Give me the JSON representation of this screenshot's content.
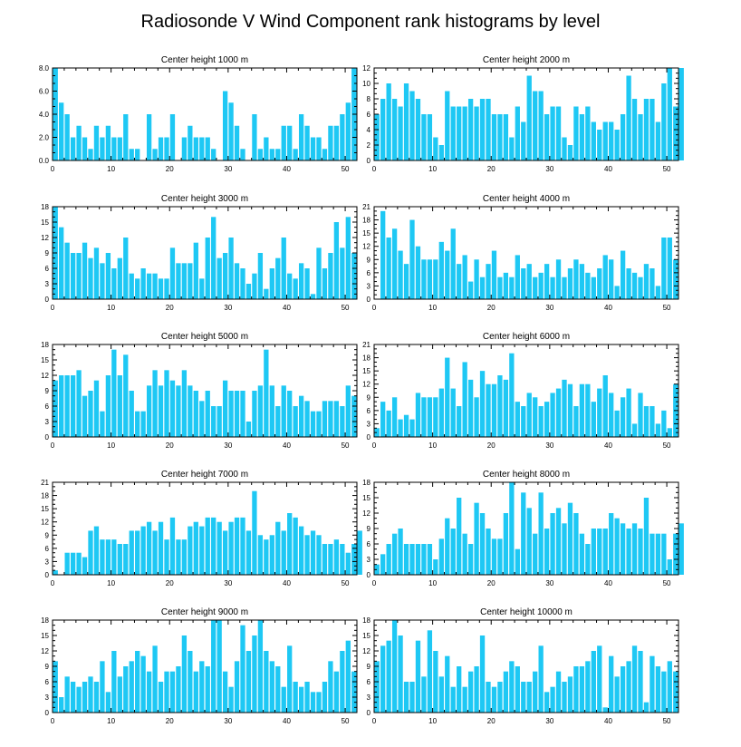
{
  "figure": {
    "title": "Radiosonde V Wind Component rank histograms by level",
    "bar_color": "#1ec8f4",
    "axis_color": "#000000"
  },
  "chart_data": [
    {
      "type": "bar",
      "title": "Center height 1000 m",
      "ylim": [
        0,
        8
      ],
      "yticks": [
        0,
        2,
        4,
        6,
        8
      ],
      "ytick_labels": [
        "0.0",
        "2.0",
        "4.0",
        "6.0",
        "8.0"
      ],
      "xlim": [
        0,
        52
      ],
      "xticks": [
        0,
        10,
        20,
        30,
        40,
        50
      ],
      "xlabel": "",
      "ylabel": "",
      "values": [
        8,
        5,
        4,
        2,
        3,
        2,
        1,
        3,
        2,
        3,
        2,
        2,
        4,
        1,
        1,
        0,
        4,
        1,
        2,
        2,
        4,
        0,
        2,
        3,
        2,
        2,
        2,
        1,
        0,
        6,
        5,
        3,
        1,
        0,
        4,
        1,
        2,
        1,
        1,
        3,
        3,
        1,
        4,
        3,
        2,
        2,
        1,
        3,
        3,
        4,
        5,
        8
      ]
    },
    {
      "type": "bar",
      "title": "Center height 2000 m",
      "ylim": [
        0,
        12
      ],
      "yticks": [
        0,
        2,
        4,
        6,
        8,
        10,
        12
      ],
      "ytick_labels": [
        "0",
        "2",
        "4",
        "6",
        "8",
        "10",
        "12"
      ],
      "xlim": [
        0,
        52
      ],
      "xticks": [
        0,
        10,
        20,
        30,
        40,
        50
      ],
      "xlabel": "",
      "ylabel": "",
      "values": [
        6,
        8,
        10,
        8,
        7,
        10,
        9,
        8,
        6,
        6,
        3,
        2,
        9,
        7,
        7,
        7,
        8,
        7,
        8,
        8,
        6,
        6,
        6,
        3,
        7,
        5,
        11,
        9,
        9,
        6,
        7,
        7,
        3,
        2,
        7,
        6,
        7,
        5,
        4,
        5,
        5,
        4,
        6,
        11,
        8,
        6,
        8,
        8,
        5,
        10,
        12,
        7,
        12
      ]
    },
    {
      "type": "bar",
      "title": "Center height 3000 m",
      "ylim": [
        0,
        18
      ],
      "yticks": [
        0,
        3,
        6,
        9,
        12,
        15,
        18
      ],
      "ytick_labels": [
        "0",
        "3",
        "6",
        "9",
        "12",
        "15",
        "18"
      ],
      "xlim": [
        0,
        52
      ],
      "xticks": [
        0,
        10,
        20,
        30,
        40,
        50
      ],
      "xlabel": "",
      "ylabel": "",
      "values": [
        18,
        14,
        11,
        9,
        9,
        11,
        8,
        10,
        7,
        9,
        6,
        8,
        12,
        5,
        4,
        6,
        5,
        5,
        4,
        4,
        10,
        7,
        7,
        7,
        11,
        4,
        12,
        16,
        8,
        9,
        12,
        7,
        6,
        3,
        5,
        9,
        2,
        6,
        8,
        12,
        5,
        4,
        7,
        6,
        1,
        10,
        6,
        9,
        15,
        10,
        16,
        9
      ]
    },
    {
      "type": "bar",
      "title": "Center height 4000 m",
      "ylim": [
        0,
        21
      ],
      "yticks": [
        0,
        3,
        6,
        9,
        12,
        15,
        18,
        21
      ],
      "ytick_labels": [
        "0",
        "3",
        "6",
        "9",
        "12",
        "15",
        "18",
        "21"
      ],
      "xlim": [
        0,
        52
      ],
      "xticks": [
        0,
        10,
        20,
        30,
        40,
        50
      ],
      "xlabel": "",
      "ylabel": "",
      "values": [
        0,
        20,
        14,
        16,
        11,
        8,
        18,
        12,
        9,
        9,
        9,
        13,
        11,
        16,
        8,
        10,
        4,
        9,
        5,
        8,
        11,
        5,
        6,
        5,
        10,
        7,
        8,
        5,
        6,
        8,
        5,
        9,
        5,
        7,
        9,
        8,
        6,
        5,
        7,
        10,
        9,
        3,
        11,
        7,
        6,
        5,
        8,
        7,
        3,
        14,
        14,
        9
      ]
    },
    {
      "type": "bar",
      "title": "Center height 5000 m",
      "ylim": [
        0,
        18
      ],
      "yticks": [
        0,
        3,
        6,
        9,
        12,
        15,
        18
      ],
      "ytick_labels": [
        "0",
        "3",
        "6",
        "9",
        "12",
        "15",
        "18"
      ],
      "xlim": [
        0,
        52
      ],
      "xticks": [
        0,
        10,
        20,
        30,
        40,
        50
      ],
      "xlabel": "",
      "ylabel": "",
      "values": [
        11,
        12,
        12,
        12,
        13,
        8,
        9,
        11,
        5,
        12,
        17,
        12,
        16,
        9,
        5,
        5,
        10,
        13,
        10,
        13,
        11,
        10,
        13,
        10,
        9,
        7,
        9,
        6,
        6,
        11,
        9,
        9,
        9,
        3,
        9,
        10,
        17,
        10,
        6,
        10,
        9,
        6,
        8,
        7,
        5,
        5,
        7,
        7,
        7,
        6,
        10,
        8
      ]
    },
    {
      "type": "bar",
      "title": "Center height 6000 m",
      "ylim": [
        0,
        21
      ],
      "yticks": [
        0,
        3,
        6,
        9,
        12,
        15,
        18,
        21
      ],
      "ytick_labels": [
        "0",
        "3",
        "6",
        "9",
        "12",
        "15",
        "18",
        "21"
      ],
      "xlim": [
        0,
        52
      ],
      "xticks": [
        0,
        10,
        20,
        30,
        40,
        50
      ],
      "xlabel": "",
      "ylabel": "",
      "values": [
        2,
        8,
        6,
        9,
        4,
        5,
        4,
        10,
        9,
        9,
        9,
        11,
        18,
        11,
        7,
        17,
        13,
        9,
        15,
        12,
        12,
        14,
        13,
        19,
        8,
        7,
        10,
        9,
        7,
        8,
        10,
        11,
        13,
        12,
        7,
        12,
        12,
        8,
        11,
        14,
        10,
        6,
        9,
        11,
        3,
        10,
        7,
        7,
        3,
        6,
        2,
        12
      ]
    },
    {
      "type": "bar",
      "title": "Center height 7000 m",
      "ylim": [
        0,
        21
      ],
      "yticks": [
        0,
        3,
        6,
        9,
        12,
        15,
        18,
        21
      ],
      "ytick_labels": [
        "0",
        "3",
        "6",
        "9",
        "12",
        "15",
        "18",
        "21"
      ],
      "xlim": [
        0,
        52
      ],
      "xticks": [
        0,
        10,
        20,
        30,
        40,
        50
      ],
      "xlabel": "",
      "ylabel": "",
      "values": [
        1,
        0,
        5,
        5,
        5,
        4,
        10,
        11,
        8,
        8,
        8,
        7,
        7,
        10,
        10,
        11,
        12,
        10,
        12,
        8,
        13,
        8,
        8,
        11,
        12,
        11,
        13,
        13,
        12,
        10,
        12,
        13,
        13,
        10,
        19,
        9,
        8,
        9,
        12,
        10,
        14,
        13,
        11,
        9,
        10,
        9,
        7,
        7,
        8,
        7,
        5,
        7,
        10
      ]
    },
    {
      "type": "bar",
      "title": "Center height 8000 m",
      "ylim": [
        0,
        18
      ],
      "yticks": [
        0,
        3,
        6,
        9,
        12,
        15,
        18
      ],
      "ytick_labels": [
        "0",
        "3",
        "6",
        "9",
        "12",
        "15",
        "18"
      ],
      "xlim": [
        0,
        52
      ],
      "xticks": [
        0,
        10,
        20,
        30,
        40,
        50
      ],
      "xlabel": "",
      "ylabel": "",
      "values": [
        2,
        4,
        6,
        8,
        9,
        6,
        6,
        6,
        6,
        6,
        3,
        7,
        11,
        9,
        15,
        8,
        6,
        14,
        12,
        9,
        7,
        7,
        12,
        18,
        5,
        16,
        13,
        8,
        16,
        9,
        12,
        13,
        10,
        14,
        12,
        8,
        6,
        9,
        9,
        9,
        12,
        11,
        10,
        9,
        10,
        9,
        15,
        8,
        8,
        8,
        3,
        8,
        10
      ]
    },
    {
      "type": "bar",
      "title": "Center height 9000 m",
      "ylim": [
        0,
        18
      ],
      "yticks": [
        0,
        3,
        6,
        9,
        12,
        15,
        18
      ],
      "ytick_labels": [
        "0",
        "3",
        "6",
        "9",
        "12",
        "15",
        "18"
      ],
      "xlim": [
        0,
        52
      ],
      "xticks": [
        0,
        10,
        20,
        30,
        40,
        50
      ],
      "xlabel": "",
      "ylabel": "",
      "values": [
        10,
        3,
        7,
        6,
        5,
        6,
        7,
        6,
        10,
        4,
        12,
        7,
        9,
        10,
        12,
        11,
        8,
        13,
        6,
        8,
        8,
        9,
        15,
        12,
        8,
        10,
        9,
        18,
        18,
        8,
        5,
        10,
        17,
        12,
        15,
        18,
        12,
        10,
        9,
        5,
        13,
        6,
        5,
        6,
        4,
        4,
        6,
        10,
        8,
        12,
        14,
        8
      ]
    },
    {
      "type": "bar",
      "title": "Center height 10000 m",
      "ylim": [
        0,
        18
      ],
      "yticks": [
        0,
        3,
        6,
        9,
        12,
        15,
        18
      ],
      "ytick_labels": [
        "0",
        "3",
        "6",
        "9",
        "12",
        "15",
        "18"
      ],
      "xlim": [
        0,
        52
      ],
      "xticks": [
        0,
        10,
        20,
        30,
        40,
        50
      ],
      "xlabel": "",
      "ylabel": "",
      "values": [
        10,
        13,
        14,
        18,
        15,
        6,
        6,
        14,
        7,
        16,
        12,
        7,
        11,
        5,
        9,
        5,
        8,
        9,
        15,
        6,
        5,
        6,
        8,
        10,
        9,
        6,
        6,
        8,
        13,
        4,
        5,
        8,
        6,
        7,
        9,
        9,
        10,
        12,
        13,
        1,
        11,
        7,
        9,
        10,
        13,
        12,
        2,
        11,
        9,
        8,
        10,
        8
      ]
    }
  ]
}
